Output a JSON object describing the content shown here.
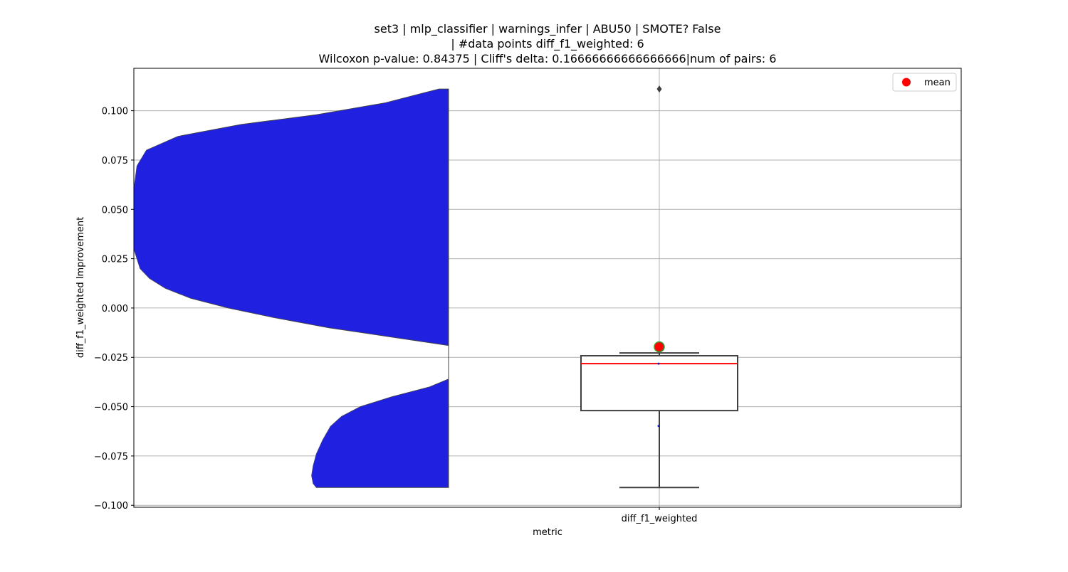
{
  "chart_data": {
    "type": "violin_box",
    "title_lines": [
      "set3 | mlp_classifier | warnings_infer | ABU50 | SMOTE? False",
      "| #data points diff_f1_weighted: 6",
      "Wilcoxon p-value: 0.84375 | Cliff's delta: 0.16666666666666666|num of pairs: 6"
    ],
    "xlabel": "metric",
    "ylabel": "diff_f1_weighted Improvement",
    "categories": [
      "diff_f1_weighted"
    ],
    "ylim": [
      -0.101,
      0.1215
    ],
    "yticks": [
      0.1,
      0.075,
      0.05,
      0.025,
      0.0,
      -0.025,
      -0.05,
      -0.075,
      -0.1
    ],
    "ytick_labels": [
      "0.100",
      "0.075",
      "0.050",
      "0.025",
      "0.000",
      "−0.025",
      "−0.050",
      "−0.075",
      "−0.100"
    ],
    "grid": true,
    "legend": {
      "position": "top-right",
      "entries": [
        {
          "label": "mean",
          "color": "#ff0000"
        }
      ]
    },
    "colors": {
      "violin": "#2020e0",
      "median": "#ff0000",
      "box_edge": "#3f3f3f",
      "grid": "#b0b0b0",
      "mean_marker": "#ff0000",
      "mean_edge": "#2ca02c"
    },
    "violin": {
      "range": [
        -0.091,
        0.111
      ],
      "half_width_profile": [
        [
          -0.091,
          0.42
        ],
        [
          -0.089,
          0.43
        ],
        [
          -0.085,
          0.435
        ],
        [
          -0.08,
          0.43
        ],
        [
          -0.074,
          0.42
        ],
        [
          -0.067,
          0.4
        ],
        [
          -0.06,
          0.375
        ],
        [
          -0.055,
          0.34
        ],
        [
          -0.05,
          0.28
        ],
        [
          -0.045,
          0.18
        ],
        [
          -0.04,
          0.06
        ],
        [
          -0.036,
          0.0
        ],
        [
          -0.019,
          0.0
        ],
        [
          -0.015,
          0.17
        ],
        [
          -0.01,
          0.38
        ],
        [
          -0.005,
          0.55
        ],
        [
          0.0,
          0.7
        ],
        [
          0.005,
          0.82
        ],
        [
          0.01,
          0.9
        ],
        [
          0.015,
          0.95
        ],
        [
          0.02,
          0.98
        ],
        [
          0.03,
          1.0
        ],
        [
          0.045,
          1.0
        ],
        [
          0.06,
          1.0
        ],
        [
          0.072,
          0.99
        ],
        [
          0.08,
          0.96
        ],
        [
          0.087,
          0.86
        ],
        [
          0.093,
          0.66
        ],
        [
          0.098,
          0.42
        ],
        [
          0.104,
          0.2
        ],
        [
          0.109,
          0.08
        ],
        [
          0.111,
          0.03
        ]
      ]
    },
    "box": {
      "q1": -0.052,
      "median": -0.0282,
      "q3": -0.0242,
      "whisker_low": -0.091,
      "whisker_high": -0.0228,
      "outliers": [
        0.111
      ],
      "mean": -0.0197,
      "points": [
        -0.0282,
        -0.0598
      ]
    }
  }
}
